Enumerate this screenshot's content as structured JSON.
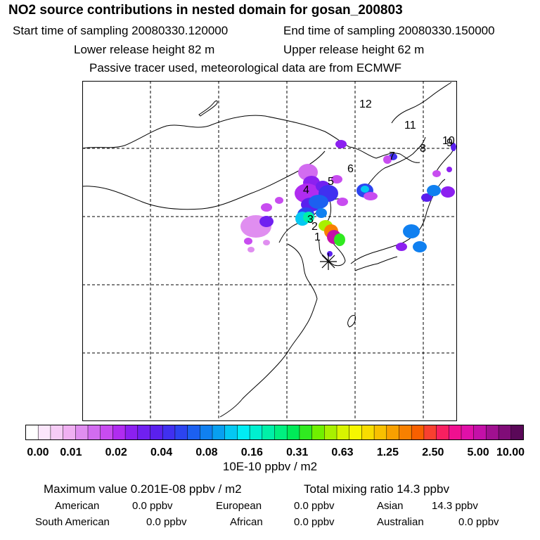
{
  "header": {
    "title": "NO2 source contributions in nested domain for gosan_200803",
    "start_time": "Start time of sampling 20080330.120000",
    "end_time": "End time of sampling 20080330.150000",
    "lower_release": "Lower release height   82 m",
    "upper_release": "Upper release height   62 m",
    "tracer_note": "Passive tracer used, meteorological data are from ECMWF"
  },
  "map": {
    "receptor_symbol": "asterisk",
    "numbered_sources": [
      "1",
      "2",
      "3",
      "4",
      "5",
      "6",
      "7",
      "8",
      "9",
      "10",
      "11",
      "12"
    ],
    "colors": {
      "land_outline": "#000000",
      "grid": "#000000",
      "background": "#ffffff"
    }
  },
  "colorbar": {
    "unit_label": "10E-10 ppbv / m2",
    "tick_labels": [
      "0.00",
      "0.01",
      "0.02",
      "0.04",
      "0.08",
      "0.16",
      "0.31",
      "0.63",
      "1.25",
      "2.50",
      "5.00",
      "10.00"
    ],
    "colors": [
      "#ffffff",
      "#fbe6fb",
      "#f6ccf6",
      "#f0b0f2",
      "#e08ef0",
      "#d26cf0",
      "#c84cf0",
      "#b02cf0",
      "#8c20f0",
      "#7020f0",
      "#5a20ee",
      "#4030f0",
      "#2c44f0",
      "#1c60f0",
      "#1080f0",
      "#08a0f0",
      "#04c8f2",
      "#00ecf4",
      "#00f0d0",
      "#00f0a8",
      "#00f080",
      "#00ea58",
      "#30ea20",
      "#70f000",
      "#a8f000",
      "#d8f400",
      "#f6f600",
      "#f8dc00",
      "#f8c000",
      "#f8a000",
      "#f88000",
      "#f86000",
      "#f84030",
      "#f82060",
      "#f01090",
      "#e010a8",
      "#c410a8",
      "#a01090",
      "#800c78",
      "#5a0858"
    ]
  },
  "summary": {
    "max_value_label": "Maximum value  0.201E-08 ppbv / m2",
    "total_mixing_label": "Total mixing ratio       14.3 ppbv",
    "regions": [
      {
        "name": "American",
        "value": "0.0 ppbv"
      },
      {
        "name": "European",
        "value": "0.0 ppbv"
      },
      {
        "name": "Asian",
        "value": "14.3 ppbv"
      },
      {
        "name": "South American",
        "value": "0.0 ppbv"
      },
      {
        "name": "African",
        "value": "0.0 ppbv"
      },
      {
        "name": "Australian",
        "value": "0.0 ppbv"
      }
    ]
  }
}
